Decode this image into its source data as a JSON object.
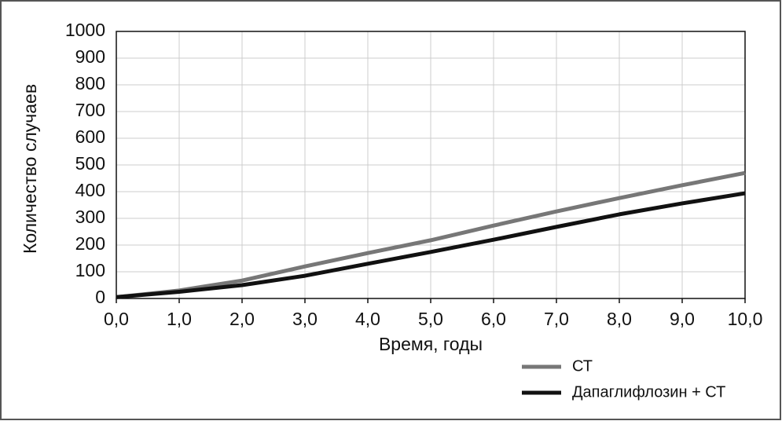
{
  "chart_data": {
    "type": "line",
    "x_label": "Время, годы",
    "y_label": "Количество случаев",
    "x": [
      0,
      1,
      2,
      3,
      4,
      5,
      6,
      7,
      8,
      9,
      10
    ],
    "series": [
      {
        "name": "СТ",
        "color": "#777777",
        "values": [
          5,
          30,
          67,
          120,
          170,
          218,
          273,
          326,
          376,
          424,
          470
        ]
      },
      {
        "name": "Дапаглифлозин + СТ",
        "color": "#111111",
        "values": [
          5,
          25,
          50,
          85,
          130,
          174,
          220,
          268,
          315,
          356,
          394
        ]
      }
    ],
    "xlim": [
      0,
      10
    ],
    "xticks": [
      {
        "value": 0,
        "label": "0,0"
      },
      {
        "value": 1,
        "label": "1,0"
      },
      {
        "value": 2,
        "label": "2,0"
      },
      {
        "value": 3,
        "label": "3,0"
      },
      {
        "value": 4,
        "label": "4,0"
      },
      {
        "value": 5,
        "label": "5,0"
      },
      {
        "value": 6,
        "label": "6,0"
      },
      {
        "value": 7,
        "label": "7,0"
      },
      {
        "value": 8,
        "label": "8,0"
      },
      {
        "value": 9,
        "label": "9,0"
      },
      {
        "value": 10,
        "label": "10,0"
      }
    ],
    "ylim": [
      0,
      1000
    ],
    "yticks": [
      0,
      100,
      200,
      300,
      400,
      500,
      600,
      700,
      800,
      900,
      1000
    ],
    "grid": true,
    "legend": "bottom-right"
  }
}
